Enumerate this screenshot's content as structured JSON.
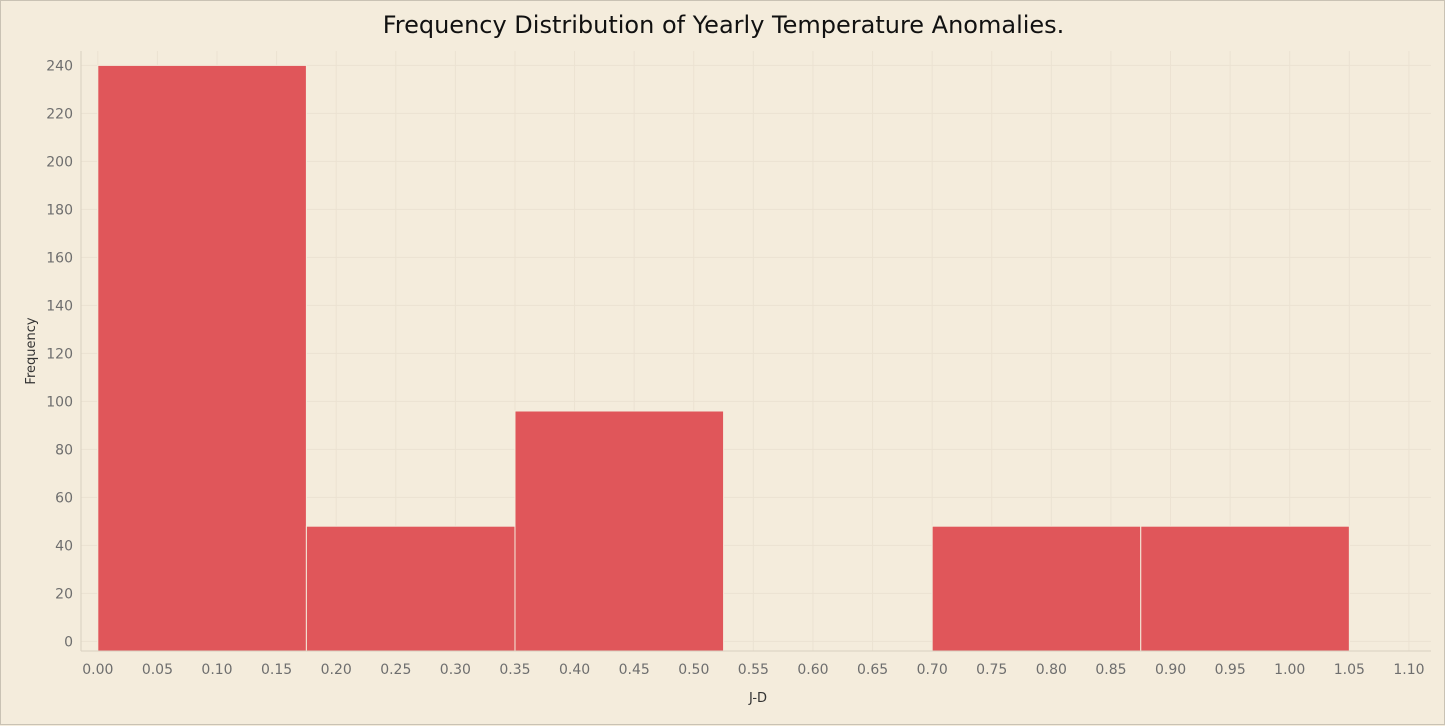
{
  "chart_data": {
    "type": "bar",
    "title": "Frequency Distribution of Yearly Temperature Anomalies.",
    "xlabel": "J-D",
    "ylabel": "Frequency",
    "bins": [
      {
        "start": 0.0,
        "end": 0.175,
        "count": 240
      },
      {
        "start": 0.175,
        "end": 0.35,
        "count": 48
      },
      {
        "start": 0.35,
        "end": 0.525,
        "count": 96
      },
      {
        "start": 0.525,
        "end": 0.7,
        "count": 0
      },
      {
        "start": 0.7,
        "end": 0.875,
        "count": 48
      },
      {
        "start": 0.875,
        "end": 1.05,
        "count": 48
      }
    ],
    "xlim": [
      -0.0141,
      1.1185
    ],
    "ylim": [
      -4,
      246
    ],
    "x_ticks": [
      "0.00",
      "0.05",
      "0.10",
      "0.15",
      "0.20",
      "0.25",
      "0.30",
      "0.35",
      "0.40",
      "0.45",
      "0.50",
      "0.55",
      "0.60",
      "0.65",
      "0.70",
      "0.75",
      "0.80",
      "0.85",
      "0.90",
      "0.95",
      "1.00",
      "1.05",
      "1.10"
    ],
    "y_ticks": [
      "0",
      "20",
      "40",
      "60",
      "80",
      "100",
      "120",
      "140",
      "160",
      "180",
      "200",
      "220",
      "240"
    ],
    "grid": true,
    "colors": {
      "bar": "#e0565a",
      "background": "#f4ecdc",
      "grid": "#ebe2d2",
      "axis": "#d9d0c0",
      "tick_text": "#6e6e6e",
      "label_text": "#333333"
    }
  }
}
